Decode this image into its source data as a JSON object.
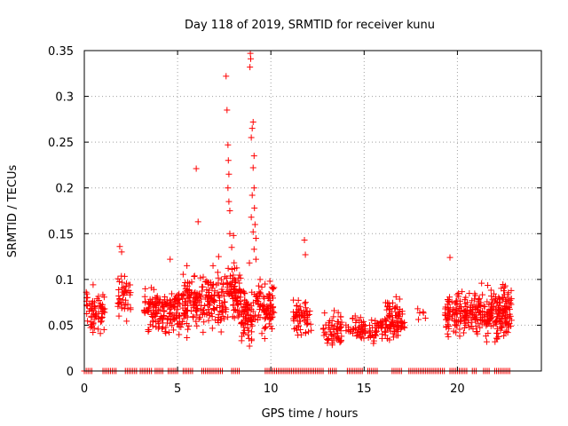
{
  "chart_data": {
    "type": "scatter",
    "title": "Day 118 of 2019, SRMTID for receiver kunu",
    "xlabel": "GPS time / hours",
    "ylabel": "SRMTID / TECUs",
    "xlim": [
      0,
      24.5
    ],
    "ylim": [
      0,
      0.35
    ],
    "xticks": [
      0,
      5,
      10,
      15,
      20
    ],
    "yticks": [
      0,
      0.05,
      0.1,
      0.15,
      0.2,
      0.25,
      0.3,
      0.35
    ],
    "xtick_labels": [
      "0",
      "5",
      "10",
      "15",
      "20"
    ],
    "ytick_labels": [
      "0",
      "0.05",
      "0.1",
      "0.15",
      "0.2",
      "0.25",
      "0.3",
      "0.35"
    ],
    "grid": true,
    "marker": "+",
    "color": "#ff0000",
    "clusters": [
      {
        "x": [
          0.1,
          1.1
        ],
        "y": [
          0.03,
          0.1
        ],
        "n": 70
      },
      {
        "x": [
          1.8,
          2.5
        ],
        "y": [
          0.05,
          0.115
        ],
        "n": 45
      },
      {
        "x": [
          3.2,
          5.2
        ],
        "y": [
          0.035,
          0.1
        ],
        "n": 160
      },
      {
        "x": [
          5.2,
          7.6
        ],
        "y": [
          0.03,
          0.12
        ],
        "n": 200
      },
      {
        "x": [
          7.6,
          8.4
        ],
        "y": [
          0.04,
          0.13
        ],
        "n": 80
      },
      {
        "x": [
          8.4,
          9.0
        ],
        "y": [
          0.02,
          0.1
        ],
        "n": 70
      },
      {
        "x": [
          9.0,
          10.2
        ],
        "y": [
          0.03,
          0.11
        ],
        "n": 90
      },
      {
        "x": [
          11.2,
          12.2
        ],
        "y": [
          0.025,
          0.09
        ],
        "n": 60
      },
      {
        "x": [
          12.8,
          13.8
        ],
        "y": [
          0.02,
          0.075
        ],
        "n": 60
      },
      {
        "x": [
          14.0,
          15.1
        ],
        "y": [
          0.03,
          0.065
        ],
        "n": 45
      },
      {
        "x": [
          15.2,
          16.0
        ],
        "y": [
          0.025,
          0.065
        ],
        "n": 40
      },
      {
        "x": [
          16.1,
          17.2
        ],
        "y": [
          0.025,
          0.085
        ],
        "n": 90
      },
      {
        "x": [
          17.7,
          18.3
        ],
        "y": [
          0.05,
          0.075
        ],
        "n": 6
      },
      {
        "x": [
          19.3,
          22.9
        ],
        "y": [
          0.025,
          0.1
        ],
        "n": 320
      }
    ],
    "outliers": [
      {
        "x": 6.0,
        "y": 0.221
      },
      {
        "x": 6.1,
        "y": 0.163
      },
      {
        "x": 7.2,
        "y": 0.125
      },
      {
        "x": 7.6,
        "y": 0.322
      },
      {
        "x": 7.65,
        "y": 0.285
      },
      {
        "x": 7.7,
        "y": 0.247
      },
      {
        "x": 7.72,
        "y": 0.23
      },
      {
        "x": 7.75,
        "y": 0.215
      },
      {
        "x": 7.7,
        "y": 0.2
      },
      {
        "x": 7.75,
        "y": 0.185
      },
      {
        "x": 7.8,
        "y": 0.175
      },
      {
        "x": 7.8,
        "y": 0.15
      },
      {
        "x": 8.0,
        "y": 0.148
      },
      {
        "x": 7.9,
        "y": 0.135
      },
      {
        "x": 8.9,
        "y": 0.347
      },
      {
        "x": 8.92,
        "y": 0.341
      },
      {
        "x": 8.88,
        "y": 0.332
      },
      {
        "x": 9.05,
        "y": 0.272
      },
      {
        "x": 9.0,
        "y": 0.265
      },
      {
        "x": 8.95,
        "y": 0.255
      },
      {
        "x": 9.1,
        "y": 0.235
      },
      {
        "x": 9.05,
        "y": 0.222
      },
      {
        "x": 9.1,
        "y": 0.2
      },
      {
        "x": 9.0,
        "y": 0.192
      },
      {
        "x": 9.12,
        "y": 0.178
      },
      {
        "x": 8.95,
        "y": 0.168
      },
      {
        "x": 9.15,
        "y": 0.16
      },
      {
        "x": 9.05,
        "y": 0.152
      },
      {
        "x": 9.2,
        "y": 0.145
      },
      {
        "x": 9.1,
        "y": 0.133
      },
      {
        "x": 9.2,
        "y": 0.122
      },
      {
        "x": 8.85,
        "y": 0.118
      },
      {
        "x": 11.8,
        "y": 0.143
      },
      {
        "x": 11.85,
        "y": 0.127
      },
      {
        "x": 1.9,
        "y": 0.136
      },
      {
        "x": 2.0,
        "y": 0.13
      },
      {
        "x": 4.6,
        "y": 0.122
      },
      {
        "x": 19.6,
        "y": 0.124
      },
      {
        "x": 5.5,
        "y": 0.115
      },
      {
        "x": 6.9,
        "y": 0.115
      }
    ],
    "zero_segments": [
      [
        0.0,
        0.4
      ],
      [
        1.0,
        1.7
      ],
      [
        2.2,
        2.8
      ],
      [
        3.0,
        3.6
      ],
      [
        3.8,
        4.2
      ],
      [
        4.5,
        5.0
      ],
      [
        5.3,
        5.8
      ],
      [
        6.3,
        7.4
      ],
      [
        7.9,
        8.3
      ],
      [
        9.7,
        12.8
      ],
      [
        13.1,
        13.5
      ],
      [
        14.1,
        14.9
      ],
      [
        15.2,
        15.7
      ],
      [
        16.5,
        17.0
      ],
      [
        17.4,
        19.3
      ],
      [
        19.6,
        20.5
      ],
      [
        20.8,
        21.0
      ],
      [
        21.4,
        21.7
      ],
      [
        22.0,
        22.8
      ]
    ]
  }
}
